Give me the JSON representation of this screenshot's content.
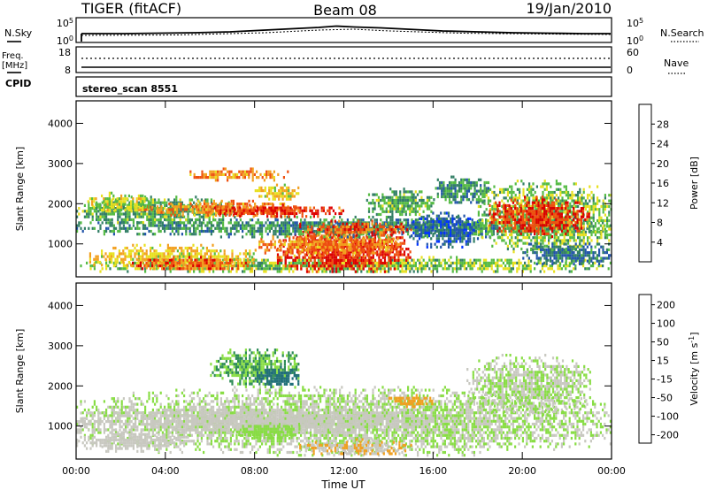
{
  "header": {
    "radar": "TIGER (fitACF)",
    "beam": "Beam 08",
    "date": "19/Jan/2010"
  },
  "panels": {
    "nsky": {
      "label": "N.Sky",
      "left_ticks": [
        "10^5",
        "10^0"
      ],
      "right_ticks": [
        "10^5",
        "10^0"
      ],
      "right_label": "N.Search"
    },
    "freq": {
      "label_line1": "Freq.",
      "label_line2": "[MHz]",
      "left_ticks": [
        "18",
        "8"
      ],
      "right_ticks": [
        "60",
        "0"
      ],
      "right_label": "Nave"
    },
    "cpid": {
      "label": "CPID",
      "value": "stereo_scan 8551"
    }
  },
  "chart_data": [
    {
      "type": "heatmap",
      "name": "Power",
      "ylabel": "Slant Range [km]",
      "xlabel": "",
      "ylim": [
        180,
        4560
      ],
      "yticks": [
        "1000",
        "2000",
        "3000",
        "4000"
      ],
      "xlim": [
        0,
        24
      ],
      "x_ticks": [
        "00:00",
        "04:00",
        "08:00",
        "12:00",
        "16:00",
        "20:00",
        "00:00"
      ],
      "colorbar": {
        "label": "Power [dB]",
        "ticks": [
          "4",
          "8",
          "12",
          "16",
          "20",
          "24",
          "28"
        ],
        "range": [
          0,
          30
        ],
        "colors": [
          "#0033ff",
          "#2255aa",
          "#337f66",
          "#55bb44",
          "#e8e020",
          "#f2a020",
          "#ee5010",
          "#dd0000"
        ]
      },
      "regions": [
        {
          "t": [
            0,
            24
          ],
          "r": [
            300,
            700
          ],
          "level": 14
        },
        {
          "t": [
            0.5,
            8
          ],
          "r": [
            400,
            1000
          ],
          "level": 18
        },
        {
          "t": [
            2.5,
            8
          ],
          "r": [
            350,
            700
          ],
          "level": 24
        },
        {
          "t": [
            9,
            15
          ],
          "r": [
            300,
            1400
          ],
          "level": 27
        },
        {
          "t": [
            8,
            14.5
          ],
          "r": [
            700,
            1300
          ],
          "level": 22
        },
        {
          "t": [
            0,
            24
          ],
          "r": [
            1200,
            1700
          ],
          "level": 10
        },
        {
          "t": [
            0,
            7
          ],
          "r": [
            1500,
            2200
          ],
          "level": 12
        },
        {
          "t": [
            3,
            10
          ],
          "r": [
            1700,
            2100
          ],
          "level": 22
        },
        {
          "t": [
            0.5,
            3.5
          ],
          "r": [
            1800,
            2300
          ],
          "level": 16
        },
        {
          "t": [
            6,
            12
          ],
          "r": [
            1700,
            2000
          ],
          "level": 26
        },
        {
          "t": [
            10,
            15
          ],
          "r": [
            1200,
            1600
          ],
          "level": 24
        },
        {
          "t": [
            5,
            9.5
          ],
          "r": [
            2600,
            2900
          ],
          "level": 22
        },
        {
          "t": [
            8,
            10
          ],
          "r": [
            2100,
            2500
          ],
          "level": 18
        },
        {
          "t": [
            15,
            18
          ],
          "r": [
            900,
            1800
          ],
          "level": 6
        },
        {
          "t": [
            18,
            24
          ],
          "r": [
            800,
            2600
          ],
          "level": 14
        },
        {
          "t": [
            18.5,
            23
          ],
          "r": [
            1200,
            2200
          ],
          "level": 26
        },
        {
          "t": [
            20,
            24
          ],
          "r": [
            500,
            1100
          ],
          "level": 8
        },
        {
          "t": [
            16,
            18.5
          ],
          "r": [
            2000,
            2700
          ],
          "level": 10
        },
        {
          "t": [
            13,
            16
          ],
          "r": [
            1700,
            2400
          ],
          "level": 12
        }
      ]
    },
    {
      "type": "heatmap",
      "name": "Velocity",
      "ylabel": "Slant Range [km]",
      "xlabel": "Time UT",
      "ylim": [
        180,
        4560
      ],
      "yticks": [
        "1000",
        "2000",
        "3000",
        "4000"
      ],
      "xlim": [
        0,
        24
      ],
      "x_ticks": [
        "00:00",
        "04:00",
        "08:00",
        "12:00",
        "16:00",
        "20:00",
        "00:00"
      ],
      "colorbar": {
        "label": "Velocity [m s^-1]",
        "ticks": [
          "200",
          "100",
          "50",
          "15",
          "-15",
          "-50",
          "-100",
          "-200"
        ],
        "range": [
          -250,
          250
        ],
        "colors": [
          "#1133bb",
          "#226f7a",
          "#2e8b57",
          "#88dd44",
          "#c8c8c0",
          "#f0a020",
          "#ee5010",
          "#dd0000"
        ]
      },
      "regions": [
        {
          "t": [
            0,
            24
          ],
          "r": [
            300,
            2000
          ],
          "level": 0
        },
        {
          "t": [
            0,
            16
          ],
          "r": [
            800,
            1500
          ],
          "level": -30
        },
        {
          "t": [
            10,
            15
          ],
          "r": [
            300,
            700
          ],
          "level": -60
        },
        {
          "t": [
            7,
            10
          ],
          "r": [
            700,
            1100
          ],
          "level": 30
        },
        {
          "t": [
            6,
            10
          ],
          "r": [
            2000,
            3000
          ],
          "level": 60
        },
        {
          "t": [
            8,
            10
          ],
          "r": [
            2000,
            2500
          ],
          "level": 150
        },
        {
          "t": [
            0,
            5
          ],
          "r": [
            400,
            900
          ],
          "level": -20
        },
        {
          "t": [
            17.5,
            23
          ],
          "r": [
            1300,
            2800
          ],
          "level": 0
        },
        {
          "t": [
            14,
            16
          ],
          "r": [
            1500,
            1800
          ],
          "level": -80
        }
      ]
    }
  ]
}
